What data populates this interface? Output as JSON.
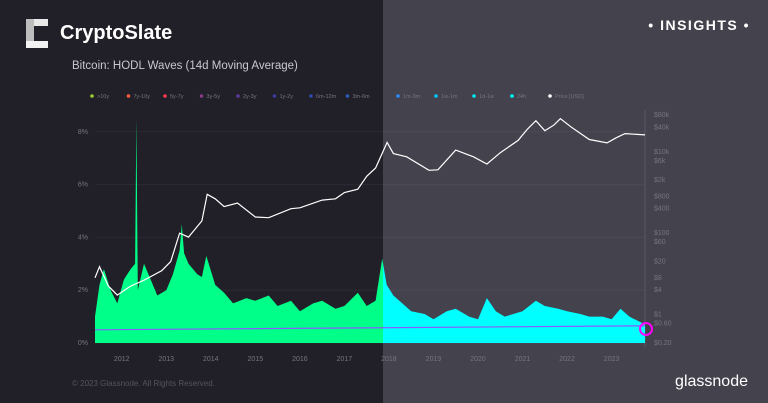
{
  "brand": {
    "name": "CryptoSlate",
    "badge": "• INSIGHTS •",
    "footer_copyright": "© 2023 Glassnode. All Rights Reserved.",
    "footer_logo": "glassnode"
  },
  "colors": {
    "left_bg": "#211f27",
    "right_bg": "#43424d",
    "area_left": "#00ff88",
    "area_right": "#00ffff",
    "price": "#ffffff",
    "baseline": "#8a5cff",
    "highlight": "#ff00ff"
  },
  "chart_data": {
    "type": "area",
    "title": "Bitcoin: HODL Waves (14d Moving Average)",
    "legend": [
      {
        "name": ">10y",
        "color": "#9acd32"
      },
      {
        "name": "7y-10y",
        "color": "#ff5a3c"
      },
      {
        "name": "5y-7y",
        "color": "#ff3c50"
      },
      {
        "name": "3y-5y",
        "color": "#8a3c8c"
      },
      {
        "name": "2y-3y",
        "color": "#5a3c9c"
      },
      {
        "name": "1y-2y",
        "color": "#3c3c9c"
      },
      {
        "name": "6m-12m",
        "color": "#2c4cac"
      },
      {
        "name": "3m-6m",
        "color": "#2c5cbc"
      },
      {
        "name": "1m-3m",
        "color": "#2c8cff"
      },
      {
        "name": "1w-1m",
        "color": "#00c8ff"
      },
      {
        "name": "1d-1w",
        "color": "#00e8f0"
      },
      {
        "name": "24h",
        "color": "#00ffff"
      },
      {
        "name": "Price [USD]",
        "color": "#ffffff"
      }
    ],
    "legend_position": "top",
    "x_ticks": [
      "2012",
      "2013",
      "2014",
      "2015",
      "2016",
      "2017",
      "2018",
      "2019",
      "2020",
      "2021",
      "2022",
      "2023"
    ],
    "y_left_ticks": [
      "0%",
      "2%",
      "4%",
      "6%",
      "8%"
    ],
    "y_left_range": [
      0,
      8.5
    ],
    "y_right_scale": "log",
    "y_right_ticks": [
      [
        "$0.20",
        0.2
      ],
      [
        "$0.60",
        0.6
      ],
      [
        "$1",
        1
      ],
      [
        "$4",
        4
      ],
      [
        "$8",
        8
      ],
      [
        "$20",
        20
      ],
      [
        "$60",
        60
      ],
      [
        "$100",
        100
      ],
      [
        "$400",
        400
      ],
      [
        "$800",
        800
      ],
      [
        "$2k",
        2000
      ],
      [
        "$6k",
        6000
      ],
      [
        "$10k",
        10000
      ],
      [
        "$40k",
        40000
      ],
      [
        "$80k",
        80000
      ]
    ],
    "y_right_range": [
      0.2,
      80000
    ],
    "x_range": [
      2011.4,
      2023.75
    ],
    "area_series": {
      "x": [
        2011.4,
        2011.5,
        2011.6,
        2011.75,
        2011.9,
        2012.05,
        2012.2,
        2012.3,
        2012.33,
        2012.36,
        2012.5,
        2012.65,
        2012.8,
        2013.0,
        2013.15,
        2013.3,
        2013.35,
        2013.4,
        2013.5,
        2013.7,
        2013.8,
        2013.9,
        2014.1,
        2014.3,
        2014.5,
        2014.8,
        2015.0,
        2015.3,
        2015.5,
        2015.8,
        2016.0,
        2016.3,
        2016.5,
        2016.8,
        2017.0,
        2017.3,
        2017.5,
        2017.7,
        2017.85,
        2017.95,
        2018.1,
        2018.3,
        2018.5,
        2018.8,
        2019.0,
        2019.3,
        2019.5,
        2019.8,
        2020.0,
        2020.2,
        2020.4,
        2020.6,
        2021.0,
        2021.3,
        2021.5,
        2021.8,
        2022.0,
        2022.3,
        2022.5,
        2022.8,
        2023.0,
        2023.2,
        2023.4,
        2023.75
      ],
      "values": [
        1.0,
        2.2,
        2.8,
        2.0,
        1.5,
        2.4,
        2.8,
        3.0,
        8.5,
        2.0,
        3.0,
        2.4,
        1.8,
        2.0,
        2.6,
        3.5,
        4.5,
        3.4,
        3.0,
        2.6,
        2.5,
        3.3,
        2.2,
        1.9,
        1.5,
        1.7,
        1.6,
        1.8,
        1.4,
        1.6,
        1.2,
        1.5,
        1.6,
        1.3,
        1.4,
        1.9,
        1.4,
        1.6,
        3.2,
        2.2,
        1.8,
        1.5,
        1.2,
        1.1,
        0.9,
        1.2,
        1.3,
        1.0,
        0.9,
        1.7,
        1.2,
        1.0,
        1.2,
        1.6,
        1.4,
        1.3,
        1.2,
        1.1,
        1.0,
        1.0,
        0.9,
        1.3,
        1.0,
        0.7
      ]
    },
    "baseline_series": {
      "x": [
        2011.4,
        2023.75
      ],
      "values": [
        0.5,
        0.65
      ]
    },
    "price_series": {
      "x": [
        2011.4,
        2011.5,
        2011.7,
        2011.9,
        2012.2,
        2012.5,
        2012.9,
        2013.1,
        2013.3,
        2013.5,
        2013.8,
        2013.92,
        2014.1,
        2014.3,
        2014.6,
        2015.0,
        2015.3,
        2015.8,
        2016.0,
        2016.5,
        2016.8,
        2017.0,
        2017.3,
        2017.5,
        2017.7,
        2017.96,
        2018.1,
        2018.4,
        2018.9,
        2019.1,
        2019.5,
        2019.9,
        2020.2,
        2020.5,
        2020.9,
        2021.1,
        2021.3,
        2021.5,
        2021.7,
        2021.85,
        2022.1,
        2022.5,
        2022.9,
        2023.1,
        2023.3,
        2023.75
      ],
      "values": [
        8,
        15,
        5,
        3,
        5,
        7,
        12,
        20,
        100,
        80,
        200,
        900,
        700,
        450,
        550,
        250,
        240,
        400,
        420,
        650,
        700,
        1000,
        1200,
        2500,
        4000,
        17000,
        9000,
        7500,
        3500,
        3600,
        11000,
        7500,
        5000,
        9500,
        19000,
        35000,
        58000,
        33000,
        45000,
        65000,
        40000,
        20000,
        16500,
        22000,
        28000,
        26000
      ]
    }
  }
}
